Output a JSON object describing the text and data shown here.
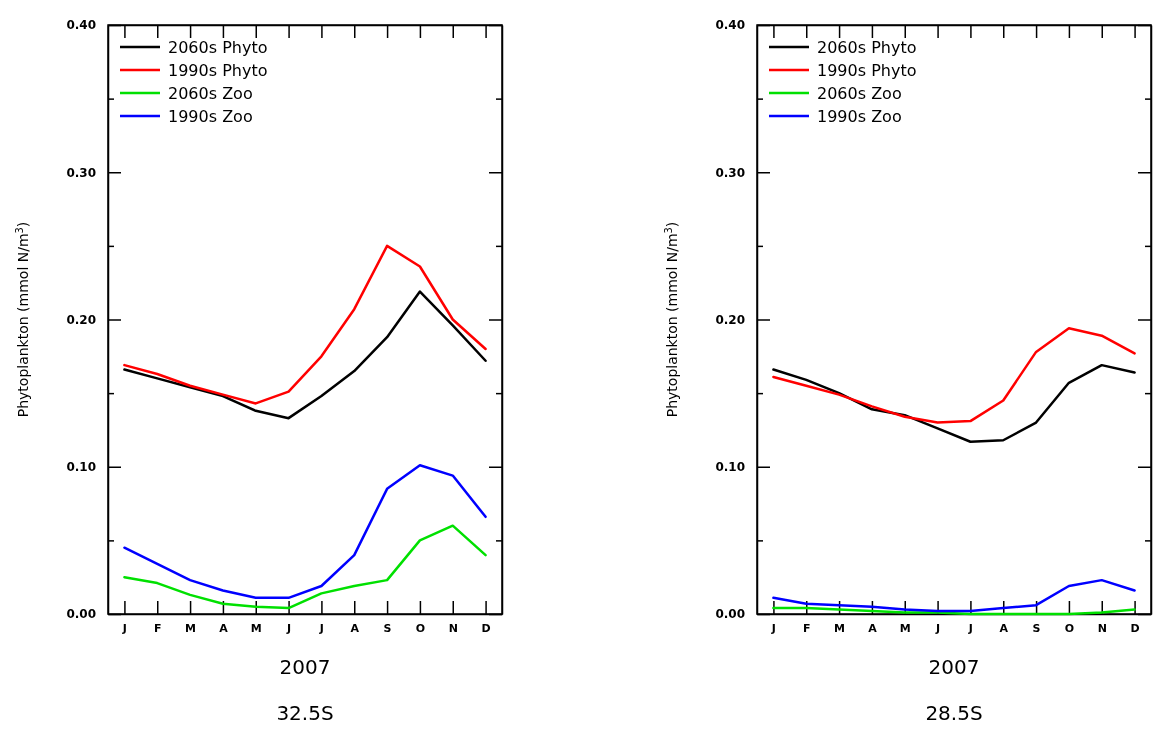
{
  "chart_data": [
    {
      "type": "line",
      "title": "32.5S",
      "xlabel": "2007",
      "ylabel": "Phytoplankton (mmol N/m$^{3}$)",
      "categories": [
        "J",
        "F",
        "M",
        "A",
        "M",
        "J",
        "J",
        "A",
        "S",
        "O",
        "N",
        "D"
      ],
      "series": [
        {
          "name": "2060s Phyto",
          "color": "#000000",
          "values": [
            0.166,
            0.16,
            0.154,
            0.148,
            0.138,
            0.133,
            0.148,
            0.165,
            0.188,
            0.219,
            0.196,
            0.172
          ]
        },
        {
          "name": "1990s Phyto",
          "color": "#ff0000",
          "values": [
            0.169,
            0.163,
            0.155,
            0.149,
            0.143,
            0.151,
            0.175,
            0.207,
            0.25,
            0.236,
            0.2,
            0.18
          ]
        },
        {
          "name": "2060s Zoo",
          "color": "#00e000",
          "values": [
            0.025,
            0.021,
            0.013,
            0.007,
            0.005,
            0.004,
            0.014,
            0.019,
            0.023,
            0.05,
            0.06,
            0.04
          ]
        },
        {
          "name": "1990s Zoo",
          "color": "#0000ff",
          "values": [
            0.045,
            0.034,
            0.023,
            0.016,
            0.011,
            0.011,
            0.019,
            0.04,
            0.085,
            0.101,
            0.094,
            0.066
          ]
        }
      ],
      "ylim": [
        0,
        0.4
      ],
      "yticks": [
        {
          "value": 0,
          "label": "0.00"
        },
        {
          "value": 0.05,
          "label": null
        },
        {
          "value": 0.1,
          "label": "0.10"
        },
        {
          "value": 0.15,
          "label": null
        },
        {
          "value": 0.2,
          "label": "0.20"
        },
        {
          "value": 0.25,
          "label": null
        },
        {
          "value": 0.3,
          "label": "0.30"
        },
        {
          "value": 0.35,
          "label": null
        },
        {
          "value": 0.4,
          "label": "0.40"
        }
      ],
      "legend": "top left",
      "grid": false,
      "line_style": "solid",
      "marker": "none"
    },
    {
      "type": "line",
      "title": "28.5S",
      "xlabel": "2007",
      "ylabel": "Phytoplankton (mmol N/m$^{3}$)",
      "categories": [
        "J",
        "F",
        "M",
        "A",
        "M",
        "J",
        "J",
        "A",
        "S",
        "O",
        "N",
        "D"
      ],
      "series": [
        {
          "name": "2060s Phyto",
          "color": "#000000",
          "values": [
            0.166,
            0.159,
            0.15,
            0.139,
            0.135,
            0.126,
            0.117,
            0.118,
            0.13,
            0.157,
            0.169,
            0.164
          ]
        },
        {
          "name": "1990s Phyto",
          "color": "#ff0000",
          "values": [
            0.161,
            0.155,
            0.149,
            0.141,
            0.134,
            0.13,
            0.131,
            0.145,
            0.178,
            0.194,
            0.189,
            0.177
          ]
        },
        {
          "name": "2060s Zoo",
          "color": "#00e000",
          "values": [
            0.004,
            0.004,
            0.003,
            0.002,
            0.001,
            0.001,
            0.0,
            0.0,
            0.0,
            0.0,
            0.001,
            0.003
          ]
        },
        {
          "name": "1990s Zoo",
          "color": "#0000ff",
          "values": [
            0.011,
            0.007,
            0.006,
            0.005,
            0.003,
            0.002,
            0.002,
            0.004,
            0.006,
            0.019,
            0.023,
            0.016
          ]
        }
      ],
      "ylim": [
        0,
        0.4
      ],
      "yticks": [
        {
          "value": 0,
          "label": "0.00"
        },
        {
          "value": 0.05,
          "label": null
        },
        {
          "value": 0.1,
          "label": "0.10"
        },
        {
          "value": 0.15,
          "label": null
        },
        {
          "value": 0.2,
          "label": "0.20"
        },
        {
          "value": 0.25,
          "label": null
        },
        {
          "value": 0.3,
          "label": "0.30"
        },
        {
          "value": 0.35,
          "label": null
        },
        {
          "value": 0.4,
          "label": "0.40"
        }
      ],
      "legend": "top left",
      "grid": false,
      "line_style": "solid",
      "marker": "none"
    }
  ]
}
